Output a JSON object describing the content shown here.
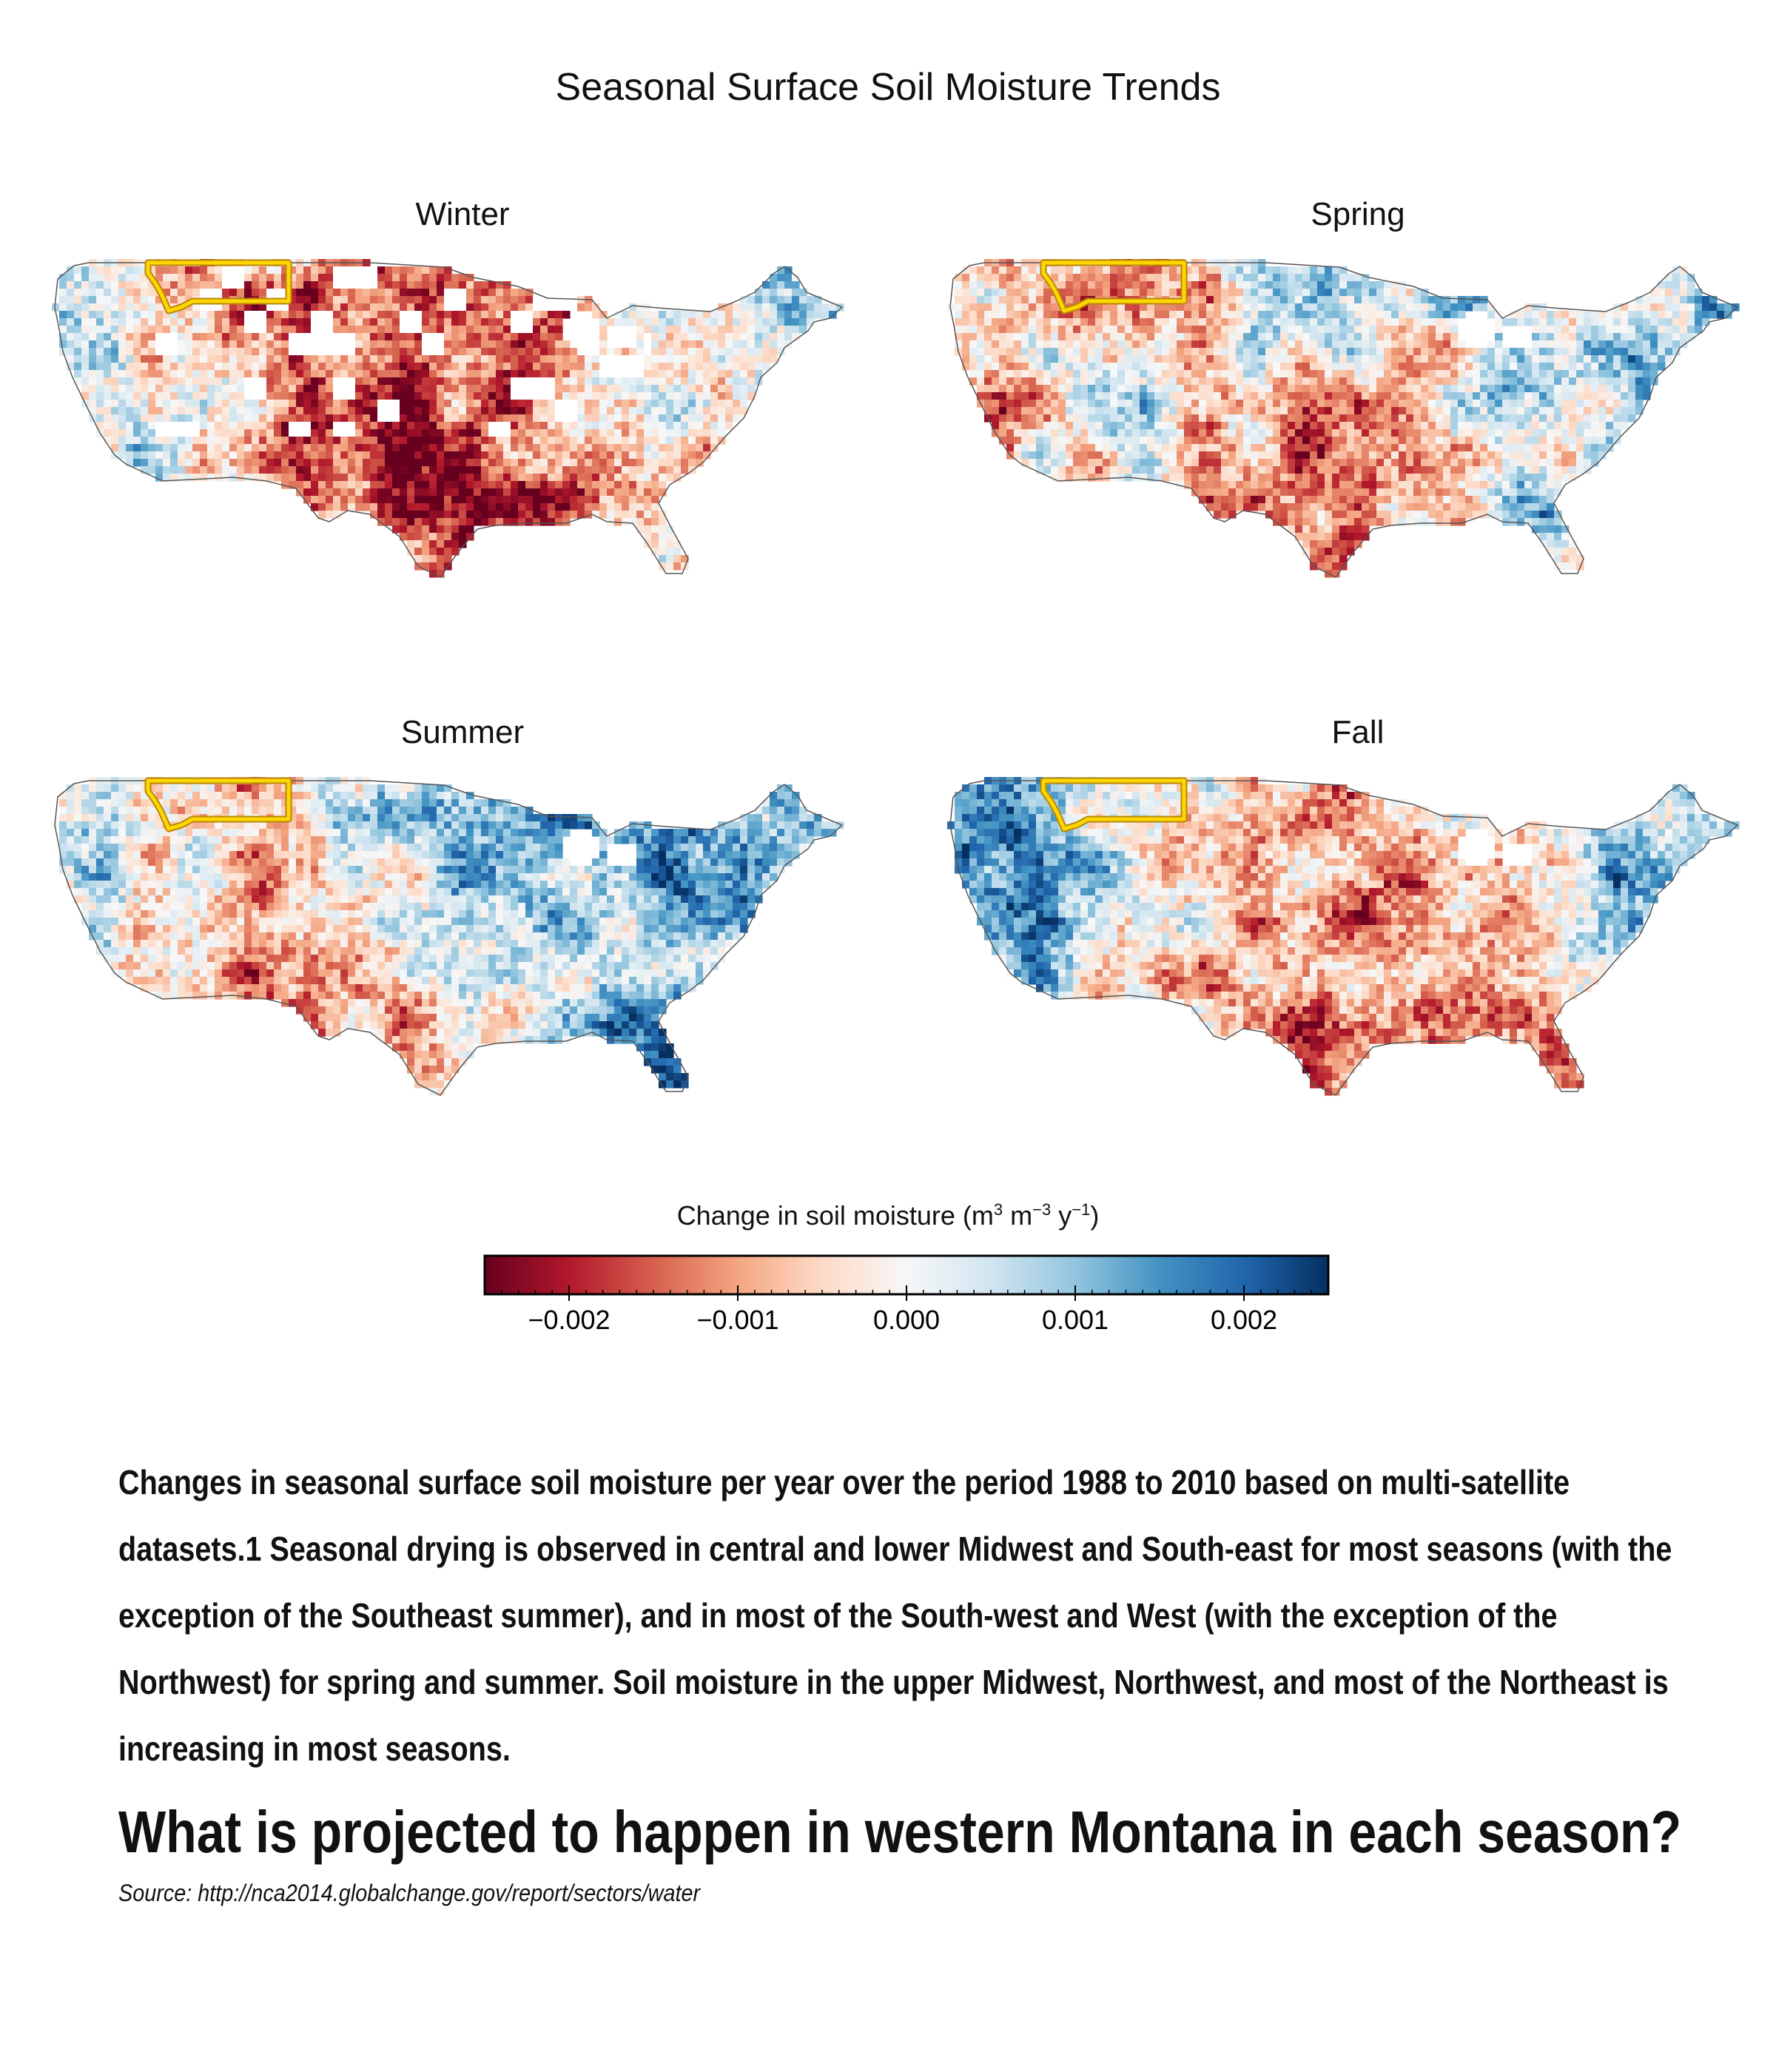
{
  "title": "Seasonal Surface Soil Moisture Trends",
  "panels": [
    {
      "id": "winter",
      "label": "Winter"
    },
    {
      "id": "spring",
      "label": "Spring"
    },
    {
      "id": "summer",
      "label": "Summer"
    },
    {
      "id": "fall",
      "label": "Fall"
    }
  ],
  "legend": {
    "title_prefix": "Change in soil moisture (m",
    "sup1": "3",
    "mid": " m",
    "sup2": "−3",
    "mid2": " y",
    "sup3": "−1",
    "suffix": ")",
    "min": -0.0025,
    "max": 0.0025,
    "ticks": [
      {
        "value": -0.002,
        "label": "−0.002"
      },
      {
        "value": -0.001,
        "label": "−0.001"
      },
      {
        "value": 0.0,
        "label": "0.000"
      },
      {
        "value": 0.001,
        "label": "0.001"
      },
      {
        "value": 0.002,
        "label": "0.002"
      }
    ],
    "colors": [
      "#67001f",
      "#b2182b",
      "#d6604d",
      "#f4a582",
      "#fddbc7",
      "#f7f7f7",
      "#d1e5f0",
      "#92c5de",
      "#4393c3",
      "#2166ac",
      "#053061"
    ]
  },
  "highlight": {
    "region": "Montana",
    "color": "#ffd700"
  },
  "caption": "Changes in seasonal surface soil moisture per year over the period 1988 to 2010 based on multi-satellite datasets.1 Seasonal drying is observed in central and lower Midwest and South-east for most seasons (with the exception of the Southeast summer), and in most of the South-west and West (with the exception of the Northwest) for spring and summer. Soil moisture in the upper Midwest, Northwest, and most of the Northeast is increasing in most seasons.",
  "question": "What is projected to happen in western Montana in each season?",
  "source": "Source: http://nca2014.globalchange.gov/report/sectors/water"
}
